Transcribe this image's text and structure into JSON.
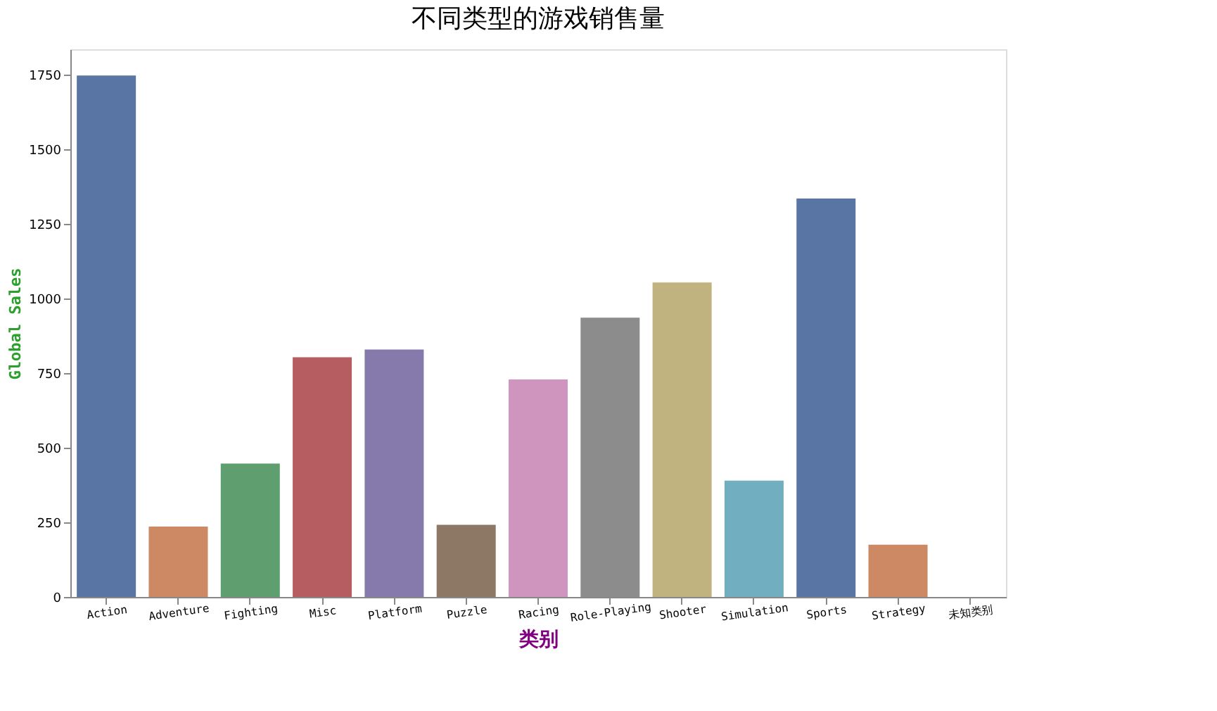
{
  "chart_data": {
    "type": "bar",
    "title": "不同类型的游戏销售量",
    "xlabel": "类别",
    "ylabel": "Global Sales",
    "categories": [
      "Action",
      "Adventure",
      "Fighting",
      "Misc",
      "Platform",
      "Puzzle",
      "Racing",
      "Role-Playing",
      "Shooter",
      "Simulation",
      "Sports",
      "Strategy",
      "未知类别"
    ],
    "values": [
      1747,
      236,
      447,
      803,
      829,
      242,
      729,
      936,
      1054,
      390,
      1335,
      175,
      null
    ],
    "colors": [
      "#5975a4",
      "#cc8963",
      "#5f9e6e",
      "#b55d60",
      "#857aab",
      "#8d7866",
      "#d095bf",
      "#8c8c8c",
      "#c1b37f",
      "#71aec0",
      "#5975a4",
      "#cc8963",
      "#5f9e6e"
    ],
    "ylim": [
      0,
      1835
    ],
    "yticks": [
      0,
      250,
      500,
      750,
      1000,
      1250,
      1500,
      1750
    ],
    "grid": false,
    "legend": false
  }
}
